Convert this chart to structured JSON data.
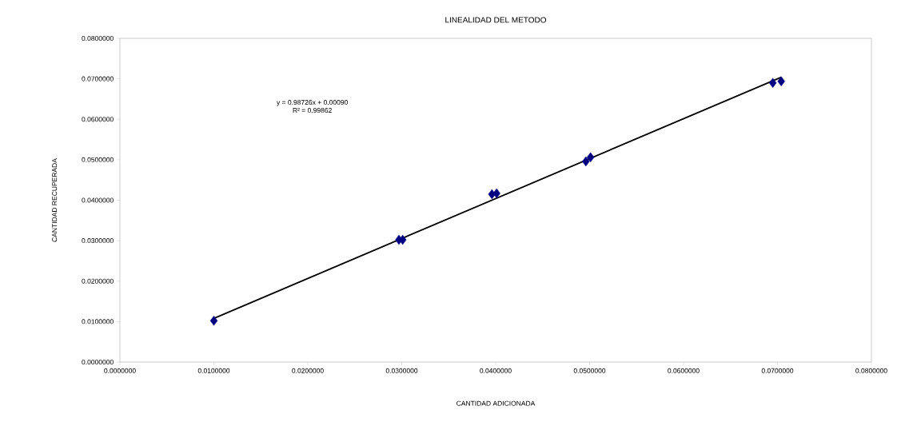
{
  "chart_data": {
    "type": "scatter",
    "title": "LINEALIDAD DEL METODO",
    "xlabel": "CANTIDAD ADICIONADA",
    "ylabel": "CANTIDAD RECUPERADA",
    "annotations": [
      "y = 0.98726x + 0.00090",
      "R² = 0.99862"
    ],
    "xlim": [
      0,
      0.08
    ],
    "ylim": [
      0,
      0.08
    ],
    "xticks": [
      {
        "value": 0,
        "label": "0.0000000"
      },
      {
        "value": 0.01,
        "label": "0.0100000"
      },
      {
        "value": 0.02,
        "label": "0.0200000"
      },
      {
        "value": 0.03,
        "label": "0.0300000"
      },
      {
        "value": 0.04,
        "label": "0.0400000"
      },
      {
        "value": 0.05,
        "label": "0.0500000"
      },
      {
        "value": 0.06,
        "label": "0.0600000"
      },
      {
        "value": 0.07,
        "label": "0.0700000"
      },
      {
        "value": 0.08,
        "label": "0.0800000"
      }
    ],
    "yticks": [
      {
        "value": 0,
        "label": "0.0000000"
      },
      {
        "value": 0.01,
        "label": "0.0100000"
      },
      {
        "value": 0.02,
        "label": "0.0200000"
      },
      {
        "value": 0.03,
        "label": "0.0300000"
      },
      {
        "value": 0.04,
        "label": "0.0400000"
      },
      {
        "value": 0.05,
        "label": "0.0500000"
      },
      {
        "value": 0.06,
        "label": "0.0600000"
      },
      {
        "value": 0.07,
        "label": "0.0700000"
      },
      {
        "value": 0.08,
        "label": "0.0800000"
      }
    ],
    "grid": false,
    "series": [
      {
        "marker": "diamond",
        "color": "#000080",
        "x": [
          0.01,
          0.0297,
          0.0301,
          0.0396,
          0.0401,
          0.0496,
          0.0501,
          0.0695,
          0.0704
        ],
        "values": [
          0.0102,
          0.0302,
          0.0302,
          0.0415,
          0.0417,
          0.0496,
          0.0506,
          0.069,
          0.0694
        ]
      },
      {
        "type": "line",
        "color": "#000000",
        "x": [
          0.01,
          0.0704
        ],
        "values": [
          0.0108,
          0.0704
        ]
      }
    ]
  }
}
